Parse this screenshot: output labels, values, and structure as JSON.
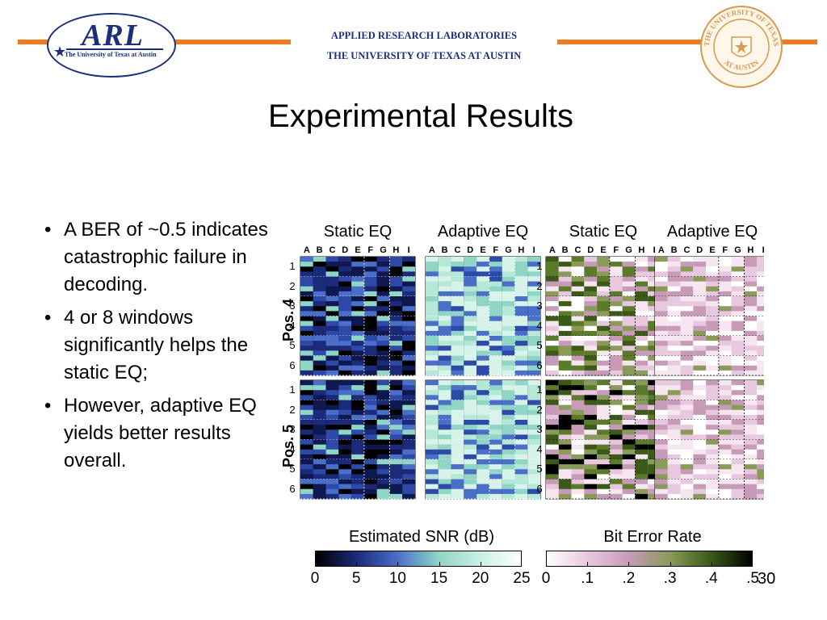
{
  "header": {
    "line1": "APPLIED RESEARCH LABORATORIES",
    "line2": "THE UNIVERSITY OF TEXAS AT AUSTIN",
    "rule_color": "#f07a1f",
    "text_color": "#1c2f7a"
  },
  "arl_logo": {
    "mark": "ARL",
    "subtitle": "The University of Texas at Austin",
    "icon": "star-icon"
  },
  "seal": {
    "text_top": "THE UNIVERSITY OF TEXAS",
    "text_bottom": "AT AUSTIN",
    "color": "#d89a4e"
  },
  "slide": {
    "title": "Experimental Results",
    "bullets": [
      "A BER of ~0.5 indicates catastrophic failure in decoding.",
      "4 or 8 windows significantly helps the static EQ;",
      "However, adaptive EQ yields better results overall."
    ],
    "page_number": "30"
  },
  "figure": {
    "panels": [
      "Static EQ",
      "Adaptive EQ",
      "Static EQ",
      "Adaptive EQ"
    ],
    "columns": [
      "A",
      "B",
      "C",
      "D",
      "E",
      "F",
      "G",
      "H",
      "I"
    ],
    "rows": [
      "1",
      "2",
      "3",
      "4",
      "5",
      "6"
    ],
    "positions": [
      "Pos. 4",
      "Pos. 5"
    ],
    "snr_scale": {
      "title": "Estimated SNR (dB)",
      "ticks": [
        "0",
        "5",
        "10",
        "15",
        "20",
        "25"
      ]
    },
    "ber_scale": {
      "title": "Bit Error Rate",
      "ticks": [
        "0",
        ".1",
        ".2",
        ".3",
        ".4",
        ".5"
      ]
    }
  },
  "chart_data": {
    "type": "heatmap",
    "title": "",
    "panels": [
      {
        "metric": "Estimated SNR (dB)",
        "equalizer": "Static EQ",
        "colormap_range": [
          0,
          25
        ]
      },
      {
        "metric": "Estimated SNR (dB)",
        "equalizer": "Adaptive EQ",
        "colormap_range": [
          0,
          25
        ]
      },
      {
        "metric": "Bit Error Rate",
        "equalizer": "Static EQ",
        "colormap_range": [
          0,
          0.5
        ]
      },
      {
        "metric": "Bit Error Rate",
        "equalizer": "Adaptive EQ",
        "colormap_range": [
          0,
          0.5
        ]
      }
    ],
    "x_categories": [
      "A",
      "B",
      "C",
      "D",
      "E",
      "F",
      "G",
      "H",
      "I"
    ],
    "y_groups": [
      {
        "name": "Pos. 4",
        "rows": [
          "1",
          "2",
          "3",
          "4",
          "5",
          "6"
        ]
      },
      {
        "name": "Pos. 5",
        "rows": [
          "1",
          "2",
          "3",
          "4",
          "5",
          "6"
        ]
      }
    ],
    "colorbars": [
      {
        "label": "Estimated SNR (dB)",
        "ticks": [
          0,
          5,
          10,
          15,
          20,
          25
        ],
        "colors": [
          "#000000",
          "#1c2a7a",
          "#4a6fc8",
          "#8fd6c6",
          "#c8f0e4",
          "#ffffff"
        ]
      },
      {
        "label": "Bit Error Rate",
        "ticks": [
          0,
          0.1,
          0.2,
          0.3,
          0.4,
          0.5
        ],
        "colors": [
          "#ffffff",
          "#e8c8de",
          "#c79bb8",
          "#8a9a58",
          "#3b5a18",
          "#000000"
        ]
      }
    ]
  }
}
